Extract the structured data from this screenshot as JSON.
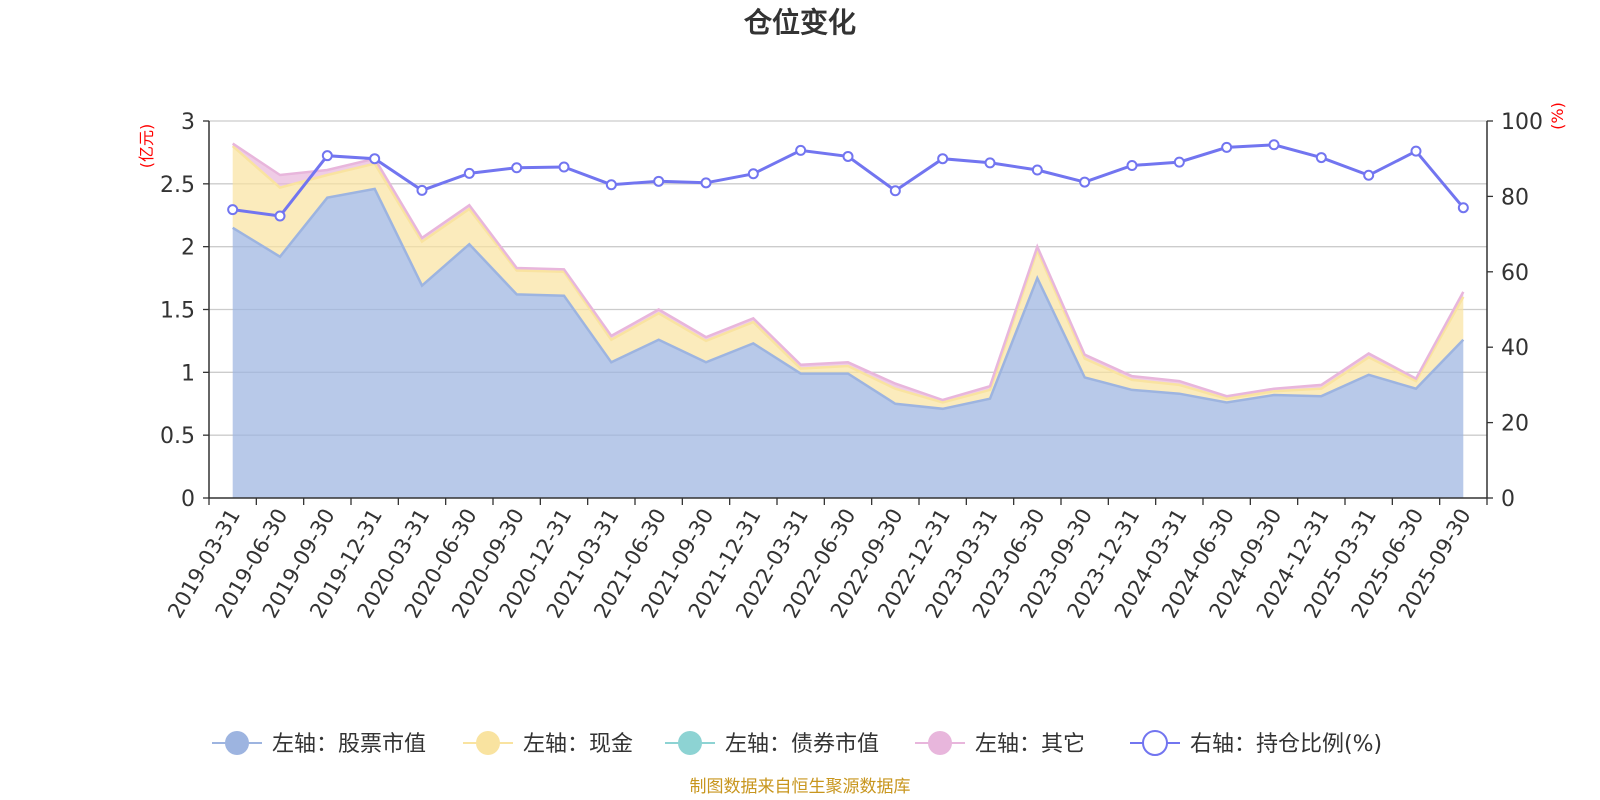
{
  "chart_data": {
    "type": "area",
    "title": "仓位变化",
    "left_axis_unit": "(亿元)",
    "right_axis_unit": "(%)",
    "ylim_left": [
      0,
      3
    ],
    "yticks_left": [
      "0",
      "0.5",
      "1",
      "1.5",
      "2",
      "2.5",
      "3"
    ],
    "ylim_right": [
      0,
      100
    ],
    "yticks_right": [
      "0",
      "20",
      "40",
      "60",
      "80",
      "100"
    ],
    "categories": [
      "2019-03-31",
      "2019-06-30",
      "2019-09-30",
      "2019-12-31",
      "2020-03-31",
      "2020-06-30",
      "2020-09-30",
      "2020-12-31",
      "2021-03-31",
      "2021-06-30",
      "2021-09-30",
      "2021-12-31",
      "2022-03-31",
      "2022-06-30",
      "2022-09-30",
      "2022-12-31",
      "2023-03-31",
      "2023-06-30",
      "2023-09-30",
      "2023-12-31",
      "2024-03-31",
      "2024-06-30",
      "2024-09-30",
      "2024-12-31",
      "2025-03-31",
      "2025-06-30",
      "2025-09-30"
    ],
    "series": [
      {
        "name": "左轴：股票市值",
        "axis": "left",
        "color": "#9db4e0",
        "values": [
          2.15,
          1.92,
          2.39,
          2.46,
          1.69,
          2.02,
          1.62,
          1.61,
          1.08,
          1.26,
          1.08,
          1.23,
          0.99,
          0.99,
          0.75,
          0.71,
          0.79,
          1.75,
          0.96,
          0.86,
          0.83,
          0.76,
          0.82,
          0.81,
          0.98,
          0.87,
          1.26
        ]
      },
      {
        "name": "左轴：现金",
        "axis": "left",
        "color": "#f9e3a0",
        "values": [
          0.65,
          0.55,
          0.18,
          0.2,
          0.35,
          0.28,
          0.19,
          0.19,
          0.18,
          0.21,
          0.17,
          0.17,
          0.04,
          0.06,
          0.12,
          0.05,
          0.07,
          0.22,
          0.15,
          0.08,
          0.07,
          0.03,
          0.03,
          0.06,
          0.14,
          0.06,
          0.34
        ]
      },
      {
        "name": "左轴：债券市值",
        "axis": "left",
        "color": "#8dd3d3",
        "values": [
          0,
          0,
          0,
          0,
          0,
          0,
          0,
          0,
          0,
          0,
          0,
          0,
          0,
          0,
          0,
          0,
          0,
          0,
          0,
          0,
          0,
          0,
          0,
          0,
          0,
          0,
          0
        ]
      },
      {
        "name": "左轴：其它",
        "axis": "left",
        "color": "#e8b6dc",
        "values": [
          0.02,
          0.1,
          0.04,
          0.04,
          0.03,
          0.03,
          0.02,
          0.02,
          0.03,
          0.03,
          0.03,
          0.03,
          0.03,
          0.03,
          0.04,
          0.02,
          0.03,
          0.03,
          0.03,
          0.03,
          0.03,
          0.02,
          0.02,
          0.03,
          0.03,
          0.02,
          0.04
        ]
      },
      {
        "name": "右轴：持仓比例(%)",
        "axis": "right",
        "color": "#7275f0",
        "values": [
          76.5,
          74.8,
          90.8,
          90.0,
          81.6,
          86.1,
          87.6,
          87.8,
          83.1,
          84.0,
          83.6,
          86.0,
          92.2,
          90.6,
          81.5,
          90.0,
          88.9,
          87.0,
          83.8,
          88.2,
          89.1,
          93.0,
          93.7,
          90.3,
          85.6,
          92.0,
          77.0
        ]
      }
    ]
  },
  "source_text": "制图数据来自恒生聚源数据库"
}
